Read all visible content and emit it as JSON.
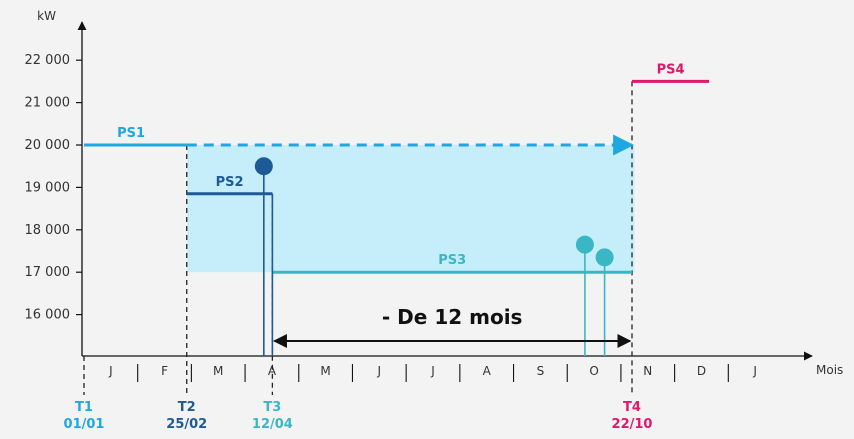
{
  "chart_data": {
    "type": "line",
    "y_unit": "kW",
    "x_unit": "Mois",
    "y_ticks": [
      {
        "value": 22000,
        "label": "22 000"
      },
      {
        "value": 21000,
        "label": "21 000"
      },
      {
        "value": 20000,
        "label": "20 000"
      },
      {
        "value": 19000,
        "label": "19 000"
      },
      {
        "value": 18000,
        "label": "18 000"
      },
      {
        "value": 17000,
        "label": "17 000"
      },
      {
        "value": 16000,
        "label": "16 000"
      }
    ],
    "months": [
      "J",
      "F",
      "M",
      "A",
      "M",
      "J",
      "J",
      "A",
      "S",
      "O",
      "N",
      "D",
      "J"
    ],
    "ylim": [
      15000,
      23000
    ],
    "series": [
      {
        "name": "PS1",
        "color": "#1fa7e0",
        "x_start_month": 0,
        "x_end_month": 1.2,
        "y": 20000
      },
      {
        "name": "PS2",
        "color": "#1e5a96",
        "x_start_month": 1.2,
        "x_end_month": 2.2,
        "y": 18850
      },
      {
        "name": "PS3",
        "color": "#3ab7c5",
        "x_start_month": 2.2,
        "x_end_month": 6.4,
        "y": 17000
      },
      {
        "name": "PS4",
        "color": "#e0186b",
        "x_start_month": 6.4,
        "x_end_month": 7.3,
        "y": 21500
      }
    ],
    "extension": {
      "color": "#1fa7e0",
      "x_start_month": 1.2,
      "x_end_month": 6.4,
      "y": 20000
    },
    "shaded_region": {
      "color": "#c6edfa",
      "x_start_month": 1.2,
      "x_end_month": 6.4,
      "y_low": 17000,
      "y_high": 20000
    },
    "peaks": [
      {
        "x_month": 2.1,
        "y": 19500,
        "color": "#1e5a96"
      },
      {
        "x_month": 5.85,
        "y": 17650,
        "color": "#3ab7c5"
      },
      {
        "x_month": 6.08,
        "y": 17350,
        "color": "#3ab7c5"
      }
    ],
    "events": [
      {
        "id": "T1",
        "date": "01/01",
        "x_month": 0,
        "color": "#1fa7e0"
      },
      {
        "id": "T2",
        "date": "25/02",
        "x_month": 1.2,
        "color": "#1e5a96"
      },
      {
        "id": "T3",
        "date": "12/04",
        "x_month": 2.2,
        "color": "#3ab7c5"
      },
      {
        "id": "T4",
        "date": "22/10",
        "x_month": 6.4,
        "color": "#e0186b"
      }
    ],
    "annotation": {
      "text": "- De 12 mois",
      "x_start_month": 2.2,
      "x_end_month": 6.4
    }
  }
}
